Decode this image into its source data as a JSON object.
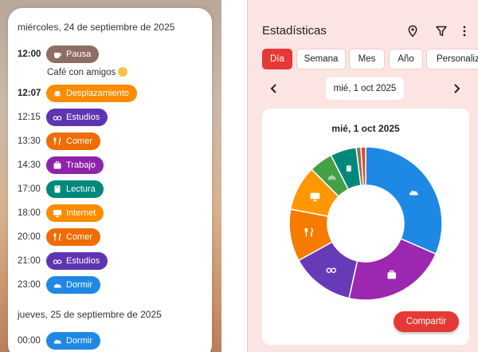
{
  "agenda": {
    "day1_header": "miércoles, 24 de septiembre de 2025",
    "day2_header": "jueves, 25 de septiembre de 2025",
    "note": "Café con amigos",
    "entries": [
      {
        "time": "12:00",
        "label": "Pausa",
        "color": "#8d6e63",
        "icon": "coffee-icon"
      },
      {
        "time": "12:07",
        "label": "Desplazamiento",
        "color": "#fb8c00",
        "icon": "car-icon"
      },
      {
        "time": "12:15",
        "label": "Estudios",
        "color": "#5e35b1",
        "icon": "glasses-icon"
      },
      {
        "time": "13:30",
        "label": "Comer",
        "color": "#ef6c00",
        "icon": "fork-knife-icon"
      },
      {
        "time": "14:30",
        "label": "Trabajo",
        "color": "#8e24aa",
        "icon": "briefcase-icon"
      },
      {
        "time": "17:00",
        "label": "Lectura",
        "color": "#00897b",
        "icon": "book-icon"
      },
      {
        "time": "18:00",
        "label": "Internet",
        "color": "#fb8c00",
        "icon": "monitor-icon"
      },
      {
        "time": "20:00",
        "label": "Comer",
        "color": "#ef6c00",
        "icon": "fork-knife-icon"
      },
      {
        "time": "21:00",
        "label": "Estudios",
        "color": "#5e35b1",
        "icon": "glasses-icon"
      },
      {
        "time": "23:00",
        "label": "Dormir",
        "color": "#1e88e5",
        "icon": "cloud-icon"
      },
      {
        "time": "00:00",
        "label": "Dormir",
        "color": "#1e88e5",
        "icon": "cloud-icon"
      }
    ]
  },
  "stats": {
    "title": "Estadísticas",
    "tabs": [
      "Día",
      "Semana",
      "Mes",
      "Año",
      "Personalizado"
    ],
    "active_tab": "Día",
    "date": "mié, 1 oct 2025",
    "share_label": "Compartir"
  },
  "chart_data": {
    "type": "pie",
    "title": "mié, 1 oct 2025",
    "donut": true,
    "slices": [
      {
        "category": "Dormir",
        "value": 31.5,
        "color": "#1e88e5",
        "icon": "cloud-icon"
      },
      {
        "category": "Trabajo",
        "value": 22.0,
        "color": "#9c27b0",
        "icon": "briefcase-icon"
      },
      {
        "category": "Estudios",
        "value": 13.5,
        "color": "#673ab7",
        "icon": "glasses-icon"
      },
      {
        "category": "Comer",
        "value": 11.0,
        "color": "#f57c00",
        "icon": "fork-knife-icon"
      },
      {
        "category": "Internet",
        "value": 9.5,
        "color": "#ff9800",
        "icon": "monitor-icon"
      },
      {
        "category": "Deporte",
        "value": 5.0,
        "color": "#43a047",
        "icon": "bike-icon"
      },
      {
        "category": "Lectura",
        "value": 5.5,
        "color": "#00897b",
        "icon": "book-icon"
      },
      {
        "category": "Pausa",
        "value": 1.0,
        "color": "#8d6e63",
        "icon": ""
      },
      {
        "category": "Desplazamiento",
        "value": 1.0,
        "color": "#e64a19",
        "icon": ""
      }
    ]
  }
}
